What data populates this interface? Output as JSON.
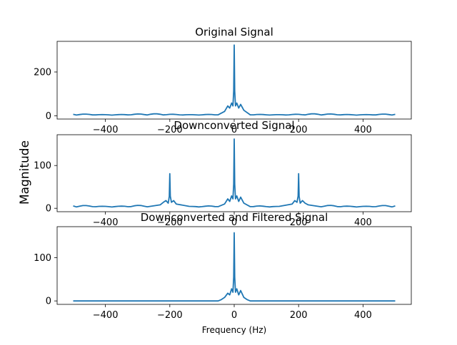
{
  "chart_data": {
    "type": "line",
    "ylabel": "Magnitude",
    "xlabel": "Frequency (Hz)",
    "line_color": "#1f77b4",
    "grid": false,
    "xlim": [
      -550,
      550
    ],
    "xticks": [
      -400,
      -200,
      0,
      200,
      400
    ],
    "subplots": [
      {
        "title": "Original Signal",
        "ylim": [
          -15,
          340
        ],
        "yticks": [
          0,
          200
        ],
        "show_xtick_labels": true,
        "main_peaks": [
          {
            "x": 0,
            "y": 323
          }
        ],
        "center_lobe": [
          {
            "x": -30,
            "y": 20
          },
          {
            "x": -20,
            "y": 45
          },
          {
            "x": -14,
            "y": 35
          },
          {
            "x": -8,
            "y": 58
          },
          {
            "x": -4,
            "y": 45
          },
          {
            "x": 4,
            "y": 45
          },
          {
            "x": 8,
            "y": 58
          },
          {
            "x": 14,
            "y": 35
          },
          {
            "x": 20,
            "y": 52
          },
          {
            "x": 30,
            "y": 25
          }
        ],
        "side_lobes": [],
        "ripple_amplitude": 4,
        "edge_value": 3
      },
      {
        "title": "Downconverted Signal",
        "ylim": [
          -8,
          172
        ],
        "yticks": [
          0,
          100
        ],
        "show_xtick_labels": true,
        "main_peaks": [
          {
            "x": 0,
            "y": 162
          },
          {
            "x": -200,
            "y": 81
          },
          {
            "x": 200,
            "y": 81
          }
        ],
        "center_lobe": [
          {
            "x": -30,
            "y": 10
          },
          {
            "x": -20,
            "y": 22
          },
          {
            "x": -14,
            "y": 16
          },
          {
            "x": -8,
            "y": 29
          },
          {
            "x": -4,
            "y": 22
          },
          {
            "x": 4,
            "y": 22
          },
          {
            "x": 8,
            "y": 29
          },
          {
            "x": 14,
            "y": 16
          },
          {
            "x": 20,
            "y": 26
          },
          {
            "x": 30,
            "y": 12
          }
        ],
        "side_lobes": [
          {
            "x": -230,
            "y": 8
          },
          {
            "x": -220,
            "y": 14
          },
          {
            "x": -212,
            "y": 18
          },
          {
            "x": -205,
            "y": 12
          },
          {
            "x": -195,
            "y": 14
          },
          {
            "x": -188,
            "y": 18
          },
          {
            "x": -180,
            "y": 10
          },
          {
            "x": 180,
            "y": 10
          },
          {
            "x": 188,
            "y": 18
          },
          {
            "x": 195,
            "y": 14
          },
          {
            "x": 205,
            "y": 12
          },
          {
            "x": 212,
            "y": 18
          },
          {
            "x": 220,
            "y": 12
          },
          {
            "x": 230,
            "y": 8
          }
        ],
        "ripple_amplitude": 3,
        "edge_value": 3
      },
      {
        "title": "Downconverted and Filtered Signal",
        "ylim": [
          -8,
          172
        ],
        "yticks": [
          0,
          100
        ],
        "show_xtick_labels": true,
        "main_peaks": [
          {
            "x": 0,
            "y": 158
          }
        ],
        "center_lobe": [
          {
            "x": -40,
            "y": 3
          },
          {
            "x": -30,
            "y": 8
          },
          {
            "x": -20,
            "y": 18
          },
          {
            "x": -14,
            "y": 14
          },
          {
            "x": -8,
            "y": 28
          },
          {
            "x": -4,
            "y": 20
          },
          {
            "x": 4,
            "y": 20
          },
          {
            "x": 8,
            "y": 28
          },
          {
            "x": 14,
            "y": 14
          },
          {
            "x": 20,
            "y": 24
          },
          {
            "x": 30,
            "y": 8
          },
          {
            "x": 40,
            "y": 3
          }
        ],
        "side_lobes": [],
        "ripple_amplitude": 0,
        "edge_value": 0
      }
    ]
  }
}
